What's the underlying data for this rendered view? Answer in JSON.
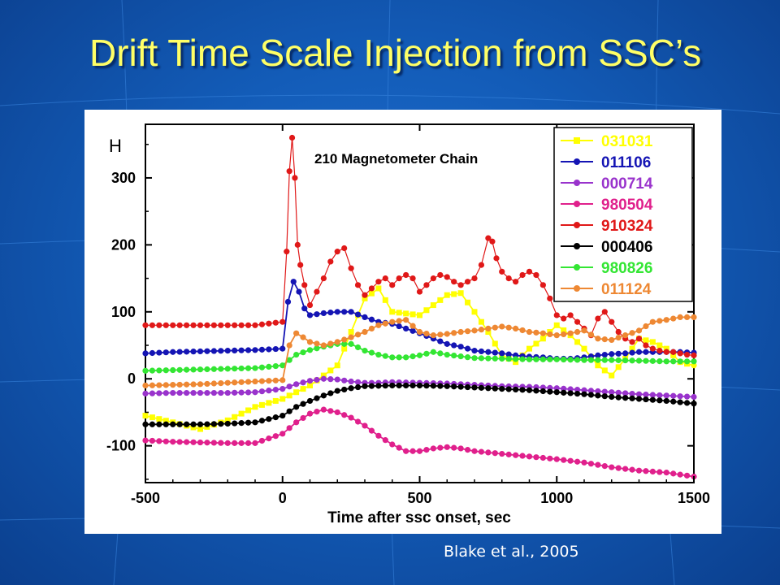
{
  "slide": {
    "title": "Drift Time Scale Injection from SSC’s",
    "caption": "Blake et al., 2005"
  },
  "colors": {
    "background": "#135cb8",
    "title": "#ffff66",
    "caption": "#ffffff"
  },
  "chart_data": {
    "type": "line",
    "title": "210 Magnetometer Chain",
    "xlabel": "Time after ssc onset, sec",
    "ylabel": "H",
    "xlim": [
      -500,
      1500
    ],
    "ylim": [
      -155,
      380
    ],
    "xticks": [
      -500,
      0,
      500,
      1000,
      1500
    ],
    "yticks": [
      -100,
      0,
      100,
      200,
      300
    ],
    "grid": false,
    "legend_position": "top-right",
    "series": [
      {
        "name": "031031",
        "color": "#ffff00",
        "marker": "square",
        "x": [
          -500,
          -400,
          -300,
          -200,
          -100,
          0,
          100,
          200,
          300,
          350,
          400,
          500,
          600,
          650,
          700,
          750,
          800,
          850,
          900,
          950,
          1000,
          1050,
          1100,
          1150,
          1200,
          1250,
          1300,
          1350,
          1400,
          1450,
          1500
        ],
        "y": [
          -55,
          -65,
          -75,
          -62,
          -42,
          -30,
          -10,
          20,
          120,
          135,
          100,
          95,
          125,
          128,
          100,
          70,
          35,
          25,
          45,
          60,
          80,
          65,
          45,
          20,
          5,
          30,
          60,
          55,
          45,
          25,
          20
        ]
      },
      {
        "name": "011106",
        "color": "#1414b4",
        "marker": "circle",
        "x": [
          -500,
          -400,
          -300,
          -200,
          -100,
          0,
          20,
          40,
          60,
          80,
          100,
          150,
          200,
          250,
          300,
          350,
          400,
          450,
          500,
          550,
          600,
          650,
          700,
          750,
          800,
          850,
          900,
          950,
          1000,
          1050,
          1100,
          1150,
          1200,
          1250,
          1300,
          1350,
          1400,
          1450,
          1500
        ],
        "y": [
          38,
          40,
          41,
          42,
          43,
          45,
          115,
          145,
          130,
          105,
          95,
          98,
          100,
          100,
          92,
          85,
          82,
          75,
          68,
          60,
          52,
          48,
          42,
          40,
          38,
          35,
          33,
          32,
          30,
          30,
          32,
          35,
          37,
          38,
          40,
          40,
          40,
          40,
          39
        ]
      },
      {
        "name": "000714",
        "color": "#9933cc",
        "marker": "circle",
        "x": [
          -500,
          -400,
          -300,
          -200,
          -100,
          0,
          50,
          100,
          150,
          200,
          250,
          300,
          350,
          400,
          500,
          600,
          700,
          800,
          900,
          1000,
          1100,
          1200,
          1300,
          1400,
          1500
        ],
        "y": [
          -22,
          -21,
          -21,
          -21,
          -20,
          -15,
          -8,
          -3,
          0,
          -1,
          -4,
          -6,
          -6,
          -5,
          -6,
          -7,
          -9,
          -11,
          -12,
          -14,
          -17,
          -20,
          -23,
          -25,
          -27
        ]
      },
      {
        "name": "980504",
        "color": "#e0208c",
        "marker": "circle",
        "x": [
          -500,
          -400,
          -300,
          -200,
          -100,
          0,
          50,
          100,
          150,
          200,
          250,
          300,
          350,
          400,
          450,
          500,
          550,
          600,
          650,
          700,
          800,
          900,
          1000,
          1100,
          1200,
          1300,
          1400,
          1500
        ],
        "y": [
          -92,
          -94,
          -95,
          -96,
          -96,
          -82,
          -65,
          -52,
          -46,
          -50,
          -58,
          -70,
          -85,
          -98,
          -108,
          -108,
          -104,
          -102,
          -104,
          -108,
          -112,
          -116,
          -120,
          -125,
          -132,
          -137,
          -140,
          -146
        ]
      },
      {
        "name": "910324",
        "color": "#e01818",
        "marker": "circle",
        "x": [
          -500,
          -400,
          -300,
          -200,
          -100,
          0,
          15,
          25,
          35,
          45,
          55,
          65,
          80,
          100,
          150,
          175,
          200,
          225,
          250,
          275,
          300,
          325,
          350,
          375,
          400,
          425,
          450,
          475,
          500,
          525,
          550,
          575,
          600,
          625,
          650,
          675,
          700,
          725,
          750,
          765,
          780,
          800,
          825,
          850,
          875,
          900,
          925,
          950,
          975,
          1000,
          1025,
          1050,
          1075,
          1100,
          1125,
          1150,
          1175,
          1200,
          1225,
          1250,
          1275,
          1300,
          1325,
          1350,
          1375,
          1400,
          1425,
          1450,
          1475,
          1500
        ],
        "y": [
          80,
          80,
          80,
          80,
          80,
          85,
          190,
          310,
          360,
          300,
          200,
          170,
          140,
          110,
          150,
          175,
          190,
          195,
          165,
          140,
          125,
          135,
          145,
          150,
          140,
          150,
          155,
          150,
          130,
          140,
          150,
          155,
          152,
          145,
          140,
          145,
          150,
          170,
          210,
          205,
          180,
          160,
          150,
          145,
          155,
          160,
          155,
          140,
          120,
          95,
          90,
          95,
          85,
          75,
          65,
          90,
          100,
          85,
          70,
          60,
          55,
          60,
          50,
          45,
          42,
          40,
          40,
          38,
          36,
          35
        ]
      },
      {
        "name": "000406",
        "color": "#000000",
        "marker": "circle",
        "x": [
          -500,
          -400,
          -300,
          -200,
          -100,
          0,
          50,
          100,
          150,
          200,
          250,
          300,
          400,
          500,
          600,
          700,
          800,
          900,
          1000,
          1100,
          1200,
          1300,
          1400,
          1500
        ],
        "y": [
          -68,
          -68,
          -68,
          -67,
          -65,
          -55,
          -42,
          -33,
          -25,
          -18,
          -14,
          -11,
          -10,
          -10,
          -11,
          -13,
          -15,
          -17,
          -20,
          -23,
          -27,
          -30,
          -33,
          -37
        ]
      },
      {
        "name": "980826",
        "color": "#33e633",
        "marker": "circle",
        "x": [
          -500,
          -400,
          -300,
          -200,
          -100,
          0,
          50,
          100,
          150,
          200,
          250,
          300,
          350,
          400,
          450,
          500,
          550,
          600,
          700,
          800,
          900,
          1000,
          1100,
          1200,
          1300,
          1400,
          1500
        ],
        "y": [
          12,
          13,
          14,
          15,
          16,
          20,
          36,
          43,
          48,
          52,
          52,
          42,
          36,
          32,
          32,
          35,
          40,
          36,
          31,
          30,
          29,
          29,
          28,
          28,
          27,
          26,
          26
        ]
      },
      {
        "name": "011124",
        "color": "#ee8833",
        "marker": "circle",
        "x": [
          -500,
          -400,
          -300,
          -200,
          -100,
          0,
          25,
          50,
          75,
          100,
          150,
          200,
          250,
          300,
          350,
          400,
          450,
          500,
          550,
          600,
          650,
          700,
          750,
          800,
          850,
          900,
          950,
          1000,
          1050,
          1100,
          1150,
          1200,
          1250,
          1300,
          1350,
          1400,
          1450,
          1500
        ],
        "y": [
          -10,
          -9,
          -8,
          -6,
          -4,
          -2,
          50,
          68,
          62,
          55,
          50,
          55,
          62,
          70,
          80,
          85,
          88,
          70,
          65,
          67,
          70,
          72,
          75,
          78,
          75,
          70,
          68,
          65,
          68,
          72,
          60,
          58,
          65,
          72,
          85,
          88,
          92,
          92
        ]
      }
    ]
  }
}
